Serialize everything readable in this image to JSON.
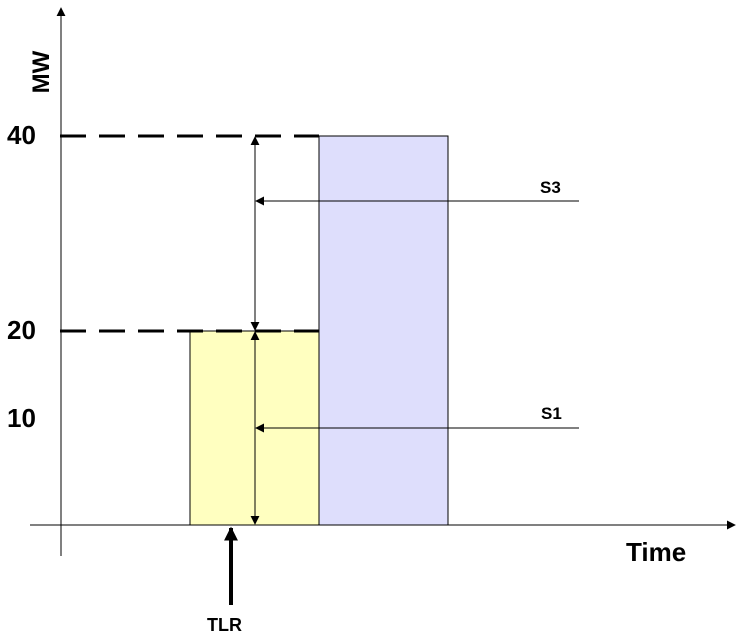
{
  "chart_data": {
    "type": "bar",
    "ylabel": "MW",
    "xlabel": "Time",
    "y_tick_labels": [
      "40",
      "20",
      "10"
    ],
    "y_ticks": [
      40,
      20,
      10
    ],
    "ylim": [
      0,
      40
    ],
    "bars": [
      {
        "label": "S1",
        "value": 20,
        "color": "#ffffc0"
      },
      {
        "label": "S3",
        "value": 40,
        "color": "#dedefc"
      }
    ],
    "reference_levels": [
      20,
      40
    ],
    "annotations": {
      "s1": "S1",
      "s3": "S3",
      "marker": "TLR"
    }
  }
}
